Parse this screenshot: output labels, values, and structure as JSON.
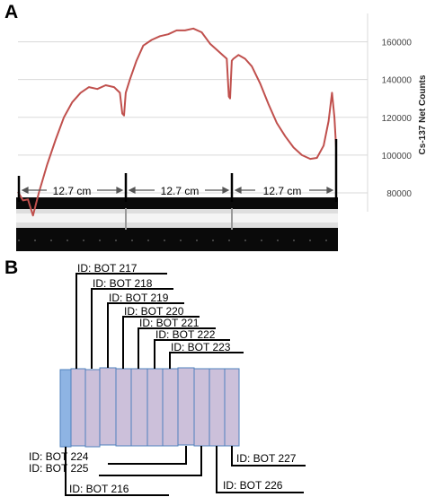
{
  "panel_a": {
    "label": "A",
    "segment_labels": [
      "12.7 cm",
      "12.7 cm",
      "12.7 cm"
    ]
  },
  "panel_b": {
    "label": "B",
    "top_ids": [
      "ID: BOT 217",
      "ID: BOT 218",
      "ID: BOT 219",
      "ID: BOT 220",
      "ID: BOT 221",
      "ID: BOT 222",
      "ID: BOT 223"
    ],
    "bottom_ids": [
      "ID: BOT 224",
      "ID: BOT 225",
      "ID: BOT 216",
      "ID: BOT 226",
      "ID: BOT 227"
    ]
  },
  "colors": {
    "curve": "#c0504d",
    "sample_fill": "#ccc0da",
    "sample_stroke": "#4f81bd",
    "sample_blue": "#8eb4e3",
    "gridline": "#d9d9d9"
  },
  "chart_data": {
    "type": "line",
    "title": "",
    "xlabel": "",
    "ylabel": "Cs-137 Net Counts",
    "yticks": [
      "80000",
      "100000",
      "120000",
      "140000",
      "160000"
    ],
    "ylim": [
      70000,
      175000
    ],
    "grid": true,
    "legend": "none",
    "x_units": "cm",
    "xlim": [
      0,
      38.1
    ],
    "x": [
      0,
      0.6,
      1.2,
      1.8,
      2.5,
      3.5,
      4.5,
      5.5,
      6.5,
      7.5,
      8.5,
      9.5,
      10.5,
      11.5,
      12.2,
      12.5,
      12.7,
      12.9,
      13.4,
      14.2,
      15.0,
      16.0,
      17.0,
      18.0,
      19.0,
      20.0,
      21.0,
      22.0,
      23.0,
      24.0,
      25.0,
      25.25,
      25.4,
      25.6,
      25.8,
      26.4,
      27.2,
      28.0,
      29.0,
      30.0,
      31.0,
      32.0,
      33.0,
      34.0,
      35.0,
      35.8,
      36.6,
      37.2,
      37.6,
      37.9,
      38.1
    ],
    "y": [
      80500,
      76000,
      76500,
      68000,
      80000,
      95000,
      108000,
      120000,
      128000,
      133000,
      136000,
      135000,
      137000,
      136000,
      133000,
      122000,
      121000,
      133000,
      140000,
      150000,
      158000,
      161000,
      163000,
      164000,
      166000,
      166000,
      167000,
      165000,
      159000,
      155000,
      151000,
      131000,
      130000,
      150000,
      151000,
      153000,
      151000,
      147000,
      138000,
      127000,
      117000,
      110000,
      104000,
      100000,
      98000,
      98500,
      105000,
      118000,
      133000,
      120000,
      104000
    ]
  }
}
